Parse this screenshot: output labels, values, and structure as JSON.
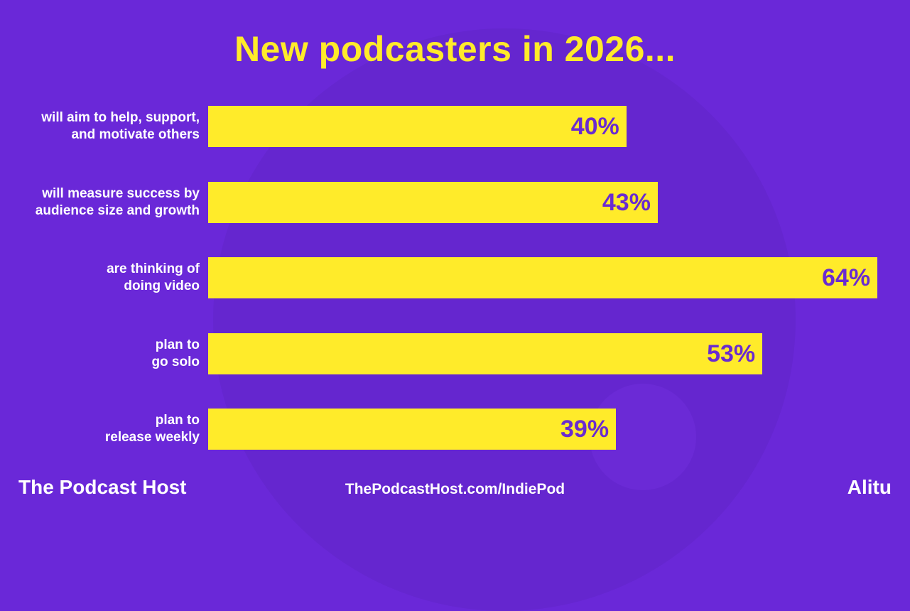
{
  "chart_data": {
    "type": "bar",
    "orientation": "horizontal",
    "title": "New podcasters in 2026...",
    "categories": [
      [
        "will aim to help, support,",
        "and motivate others"
      ],
      [
        "will measure success by",
        "audience size and growth"
      ],
      [
        "are thinking of",
        "doing video"
      ],
      [
        "plan to",
        "go solo"
      ],
      [
        "plan to",
        "release weekly"
      ]
    ],
    "values": [
      40,
      43,
      64,
      53,
      39
    ],
    "value_labels": [
      "40%",
      "43%",
      "64%",
      "53%",
      "39%"
    ],
    "unit": "%",
    "grid": false,
    "colors": {
      "background": "#6a28d8",
      "bar": "#ffeb2a",
      "value_label": "#6a2bd0",
      "title": "#ffeb2a"
    }
  },
  "footer": {
    "brand": "The Podcast Host",
    "url": "ThePodcastHost.com/IndiePod",
    "partner": "Alitu"
  }
}
